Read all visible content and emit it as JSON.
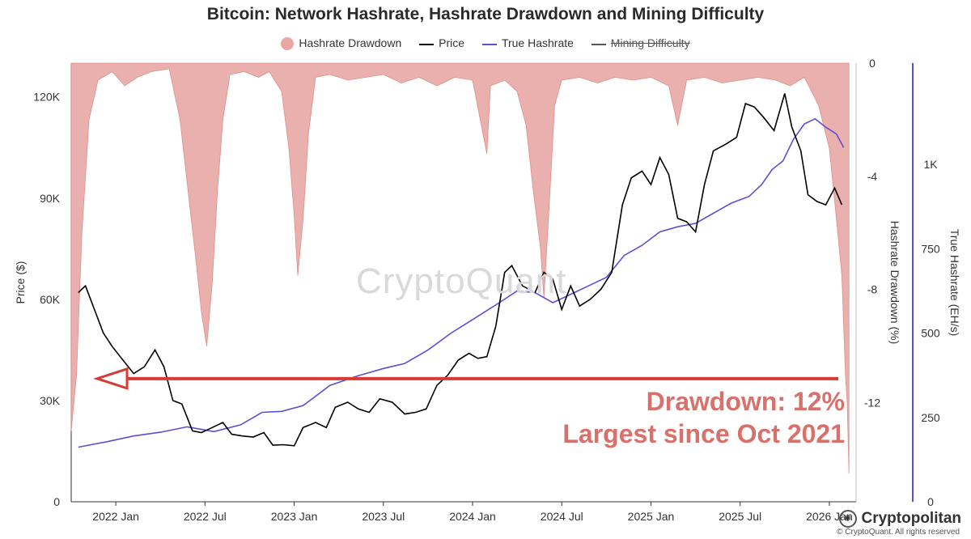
{
  "chart_data": {
    "type": "line",
    "title": "Bitcoin: Network Hashrate, Hashrate Drawdown and Mining Difficulty",
    "legend": [
      {
        "name": "Hashrate Drawdown",
        "kind": "area",
        "color": "#e8a7a4"
      },
      {
        "name": "Price",
        "kind": "line",
        "color": "#000000"
      },
      {
        "name": "True Hashrate",
        "kind": "line",
        "color": "#5b4fd6"
      },
      {
        "name": "Mining Difficulty",
        "kind": "line-disabled",
        "color": "#555555"
      }
    ],
    "x_ticks": [
      "2022 Jan",
      "2022 Jul",
      "2023 Jan",
      "2023 Jul",
      "2024 Jan",
      "2024 Jul",
      "2025 Jan",
      "2025 Jul",
      "2026 Jan"
    ],
    "x_range": [
      2021.75,
      2026.15
    ],
    "y_left": {
      "label": "Price ($)",
      "range": [
        0,
        130000
      ],
      "ticks": [
        0,
        30000,
        60000,
        90000,
        120000
      ],
      "tick_labels": [
        "0",
        "30K",
        "60K",
        "90K",
        "120K"
      ]
    },
    "y_right1": {
      "label": "Hashrate Drawdown (%)",
      "range": [
        -15.5,
        0
      ],
      "ticks": [
        0,
        -4,
        -8,
        -12
      ],
      "tick_labels": [
        "0",
        "-4",
        "-8",
        "-12"
      ]
    },
    "y_right2": {
      "label": "True Hashrate (EH/s)",
      "range": [
        0,
        1300
      ],
      "ticks": [
        0,
        250,
        500,
        750,
        1000
      ],
      "tick_labels": [
        "0",
        "250",
        "500",
        "750",
        "1K"
      ]
    },
    "series": [
      {
        "name": "Price",
        "axis": "left",
        "color": "#000000",
        "points": [
          [
            2021.79,
            62000
          ],
          [
            2021.83,
            64000
          ],
          [
            2021.88,
            57000
          ],
          [
            2021.93,
            50000
          ],
          [
            2021.98,
            46000
          ],
          [
            2022.04,
            42000
          ],
          [
            2022.1,
            38000
          ],
          [
            2022.16,
            40000
          ],
          [
            2022.22,
            45000
          ],
          [
            2022.27,
            40000
          ],
          [
            2022.32,
            30000
          ],
          [
            2022.37,
            29000
          ],
          [
            2022.43,
            21000
          ],
          [
            2022.48,
            20500
          ],
          [
            2022.54,
            22000
          ],
          [
            2022.6,
            23500
          ],
          [
            2022.65,
            20000
          ],
          [
            2022.71,
            19500
          ],
          [
            2022.77,
            19200
          ],
          [
            2022.83,
            20500
          ],
          [
            2022.88,
            16800
          ],
          [
            2022.94,
            16900
          ],
          [
            2023.0,
            16600
          ],
          [
            2023.05,
            22000
          ],
          [
            2023.12,
            23500
          ],
          [
            2023.18,
            22000
          ],
          [
            2023.23,
            28000
          ],
          [
            2023.3,
            29500
          ],
          [
            2023.36,
            27500
          ],
          [
            2023.42,
            26500
          ],
          [
            2023.48,
            30500
          ],
          [
            2023.55,
            29500
          ],
          [
            2023.62,
            26000
          ],
          [
            2023.68,
            26500
          ],
          [
            2023.74,
            27500
          ],
          [
            2023.8,
            34500
          ],
          [
            2023.86,
            37500
          ],
          [
            2023.92,
            42000
          ],
          [
            2023.98,
            44000
          ],
          [
            2024.03,
            42500
          ],
          [
            2024.08,
            43000
          ],
          [
            2024.13,
            52000
          ],
          [
            2024.18,
            68000
          ],
          [
            2024.22,
            70000
          ],
          [
            2024.28,
            64000
          ],
          [
            2024.35,
            62000
          ],
          [
            2024.4,
            68000
          ],
          [
            2024.45,
            66000
          ],
          [
            2024.5,
            57000
          ],
          [
            2024.55,
            64000
          ],
          [
            2024.6,
            58000
          ],
          [
            2024.66,
            60000
          ],
          [
            2024.72,
            63000
          ],
          [
            2024.78,
            68000
          ],
          [
            2024.84,
            88000
          ],
          [
            2024.89,
            96000
          ],
          [
            2024.95,
            98000
          ],
          [
            2025.0,
            94000
          ],
          [
            2025.05,
            102000
          ],
          [
            2025.1,
            97000
          ],
          [
            2025.15,
            84000
          ],
          [
            2025.2,
            83000
          ],
          [
            2025.25,
            80000
          ],
          [
            2025.3,
            94000
          ],
          [
            2025.35,
            104000
          ],
          [
            2025.42,
            106000
          ],
          [
            2025.48,
            108000
          ],
          [
            2025.53,
            118000
          ],
          [
            2025.58,
            117000
          ],
          [
            2025.63,
            114000
          ],
          [
            2025.69,
            110000
          ],
          [
            2025.75,
            121000
          ],
          [
            2025.79,
            111000
          ],
          [
            2025.84,
            104000
          ],
          [
            2025.88,
            91000
          ],
          [
            2025.93,
            89000
          ],
          [
            2025.98,
            88000
          ],
          [
            2026.03,
            93000
          ],
          [
            2026.07,
            88000
          ]
        ]
      },
      {
        "name": "True Hashrate",
        "axis": "right2",
        "color": "#5b4fd6",
        "points": [
          [
            2021.79,
            162
          ],
          [
            2021.95,
            178
          ],
          [
            2022.1,
            195
          ],
          [
            2022.25,
            206
          ],
          [
            2022.4,
            222
          ],
          [
            2022.55,
            208
          ],
          [
            2022.7,
            228
          ],
          [
            2022.82,
            265
          ],
          [
            2022.93,
            268
          ],
          [
            2023.05,
            285
          ],
          [
            2023.2,
            345
          ],
          [
            2023.35,
            372
          ],
          [
            2023.5,
            395
          ],
          [
            2023.62,
            410
          ],
          [
            2023.75,
            450
          ],
          [
            2023.88,
            500
          ],
          [
            2024.0,
            540
          ],
          [
            2024.15,
            590
          ],
          [
            2024.25,
            625
          ],
          [
            2024.35,
            620
          ],
          [
            2024.45,
            590
          ],
          [
            2024.55,
            615
          ],
          [
            2024.65,
            640
          ],
          [
            2024.75,
            665
          ],
          [
            2024.85,
            730
          ],
          [
            2024.95,
            760
          ],
          [
            2025.05,
            800
          ],
          [
            2025.15,
            815
          ],
          [
            2025.25,
            825
          ],
          [
            2025.35,
            855
          ],
          [
            2025.45,
            885
          ],
          [
            2025.55,
            905
          ],
          [
            2025.62,
            940
          ],
          [
            2025.68,
            985
          ],
          [
            2025.74,
            1010
          ],
          [
            2025.8,
            1075
          ],
          [
            2025.86,
            1120
          ],
          [
            2025.92,
            1135
          ],
          [
            2025.98,
            1110
          ],
          [
            2026.04,
            1090
          ],
          [
            2026.08,
            1050
          ]
        ]
      },
      {
        "name": "Hashrate Drawdown",
        "axis": "right1",
        "color": "#e8a7a4",
        "points": [
          [
            2021.75,
            -13
          ],
          [
            2021.78,
            -11
          ],
          [
            2021.81,
            -6
          ],
          [
            2021.85,
            -2
          ],
          [
            2021.9,
            -0.6
          ],
          [
            2021.98,
            -0.3
          ],
          [
            2022.05,
            -0.8
          ],
          [
            2022.12,
            -0.5
          ],
          [
            2022.2,
            -0.3
          ],
          [
            2022.3,
            -0.2
          ],
          [
            2022.36,
            -2
          ],
          [
            2022.41,
            -4.8
          ],
          [
            2022.45,
            -7
          ],
          [
            2022.48,
            -8.8
          ],
          [
            2022.51,
            -10
          ],
          [
            2022.54,
            -7.8
          ],
          [
            2022.57,
            -4.5
          ],
          [
            2022.6,
            -2
          ],
          [
            2022.64,
            -0.4
          ],
          [
            2022.72,
            -0.3
          ],
          [
            2022.8,
            -0.5
          ],
          [
            2022.86,
            -0.3
          ],
          [
            2022.93,
            -1
          ],
          [
            2022.97,
            -3
          ],
          [
            2023.0,
            -5.4
          ],
          [
            2023.02,
            -7.5
          ],
          [
            2023.05,
            -5.5
          ],
          [
            2023.08,
            -2.5
          ],
          [
            2023.12,
            -0.5
          ],
          [
            2023.2,
            -0.4
          ],
          [
            2023.3,
            -0.6
          ],
          [
            2023.4,
            -0.5
          ],
          [
            2023.5,
            -0.4
          ],
          [
            2023.6,
            -0.7
          ],
          [
            2023.7,
            -0.5
          ],
          [
            2023.8,
            -0.8
          ],
          [
            2023.9,
            -0.5
          ],
          [
            2024.0,
            -0.6
          ],
          [
            2024.08,
            -3.2
          ],
          [
            2024.1,
            -0.8
          ],
          [
            2024.18,
            -0.6
          ],
          [
            2024.25,
            -1.0
          ],
          [
            2024.3,
            -2.2
          ],
          [
            2024.34,
            -4.5
          ],
          [
            2024.38,
            -6.5
          ],
          [
            2024.4,
            -8.3
          ],
          [
            2024.43,
            -5.0
          ],
          [
            2024.46,
            -1.5
          ],
          [
            2024.5,
            -0.6
          ],
          [
            2024.6,
            -0.5
          ],
          [
            2024.7,
            -0.7
          ],
          [
            2024.8,
            -0.5
          ],
          [
            2024.9,
            -0.6
          ],
          [
            2025.0,
            -0.5
          ],
          [
            2025.1,
            -0.8
          ],
          [
            2025.15,
            -2.2
          ],
          [
            2025.2,
            -0.6
          ],
          [
            2025.3,
            -0.5
          ],
          [
            2025.4,
            -0.7
          ],
          [
            2025.5,
            -0.6
          ],
          [
            2025.6,
            -0.5
          ],
          [
            2025.7,
            -0.6
          ],
          [
            2025.78,
            -0.8
          ],
          [
            2025.86,
            -0.5
          ],
          [
            2025.94,
            -1.5
          ],
          [
            2026.0,
            -3
          ],
          [
            2026.04,
            -5.5
          ],
          [
            2026.07,
            -7.5
          ],
          [
            2026.09,
            -11
          ],
          [
            2026.1,
            -12
          ],
          [
            2026.11,
            -14.5
          ]
        ]
      }
    ],
    "annotation": {
      "lines": [
        "Drawdown: 12%",
        "Largest since Oct 2021"
      ],
      "arrow_level": 36500
    }
  },
  "watermark": "CryptoQuant",
  "brand": "Cryptopolitan",
  "copyright": "© CryptoQuant. All rights reserved",
  "colors": {
    "annotation": "#d8716b",
    "arrow": "#d83a36"
  }
}
